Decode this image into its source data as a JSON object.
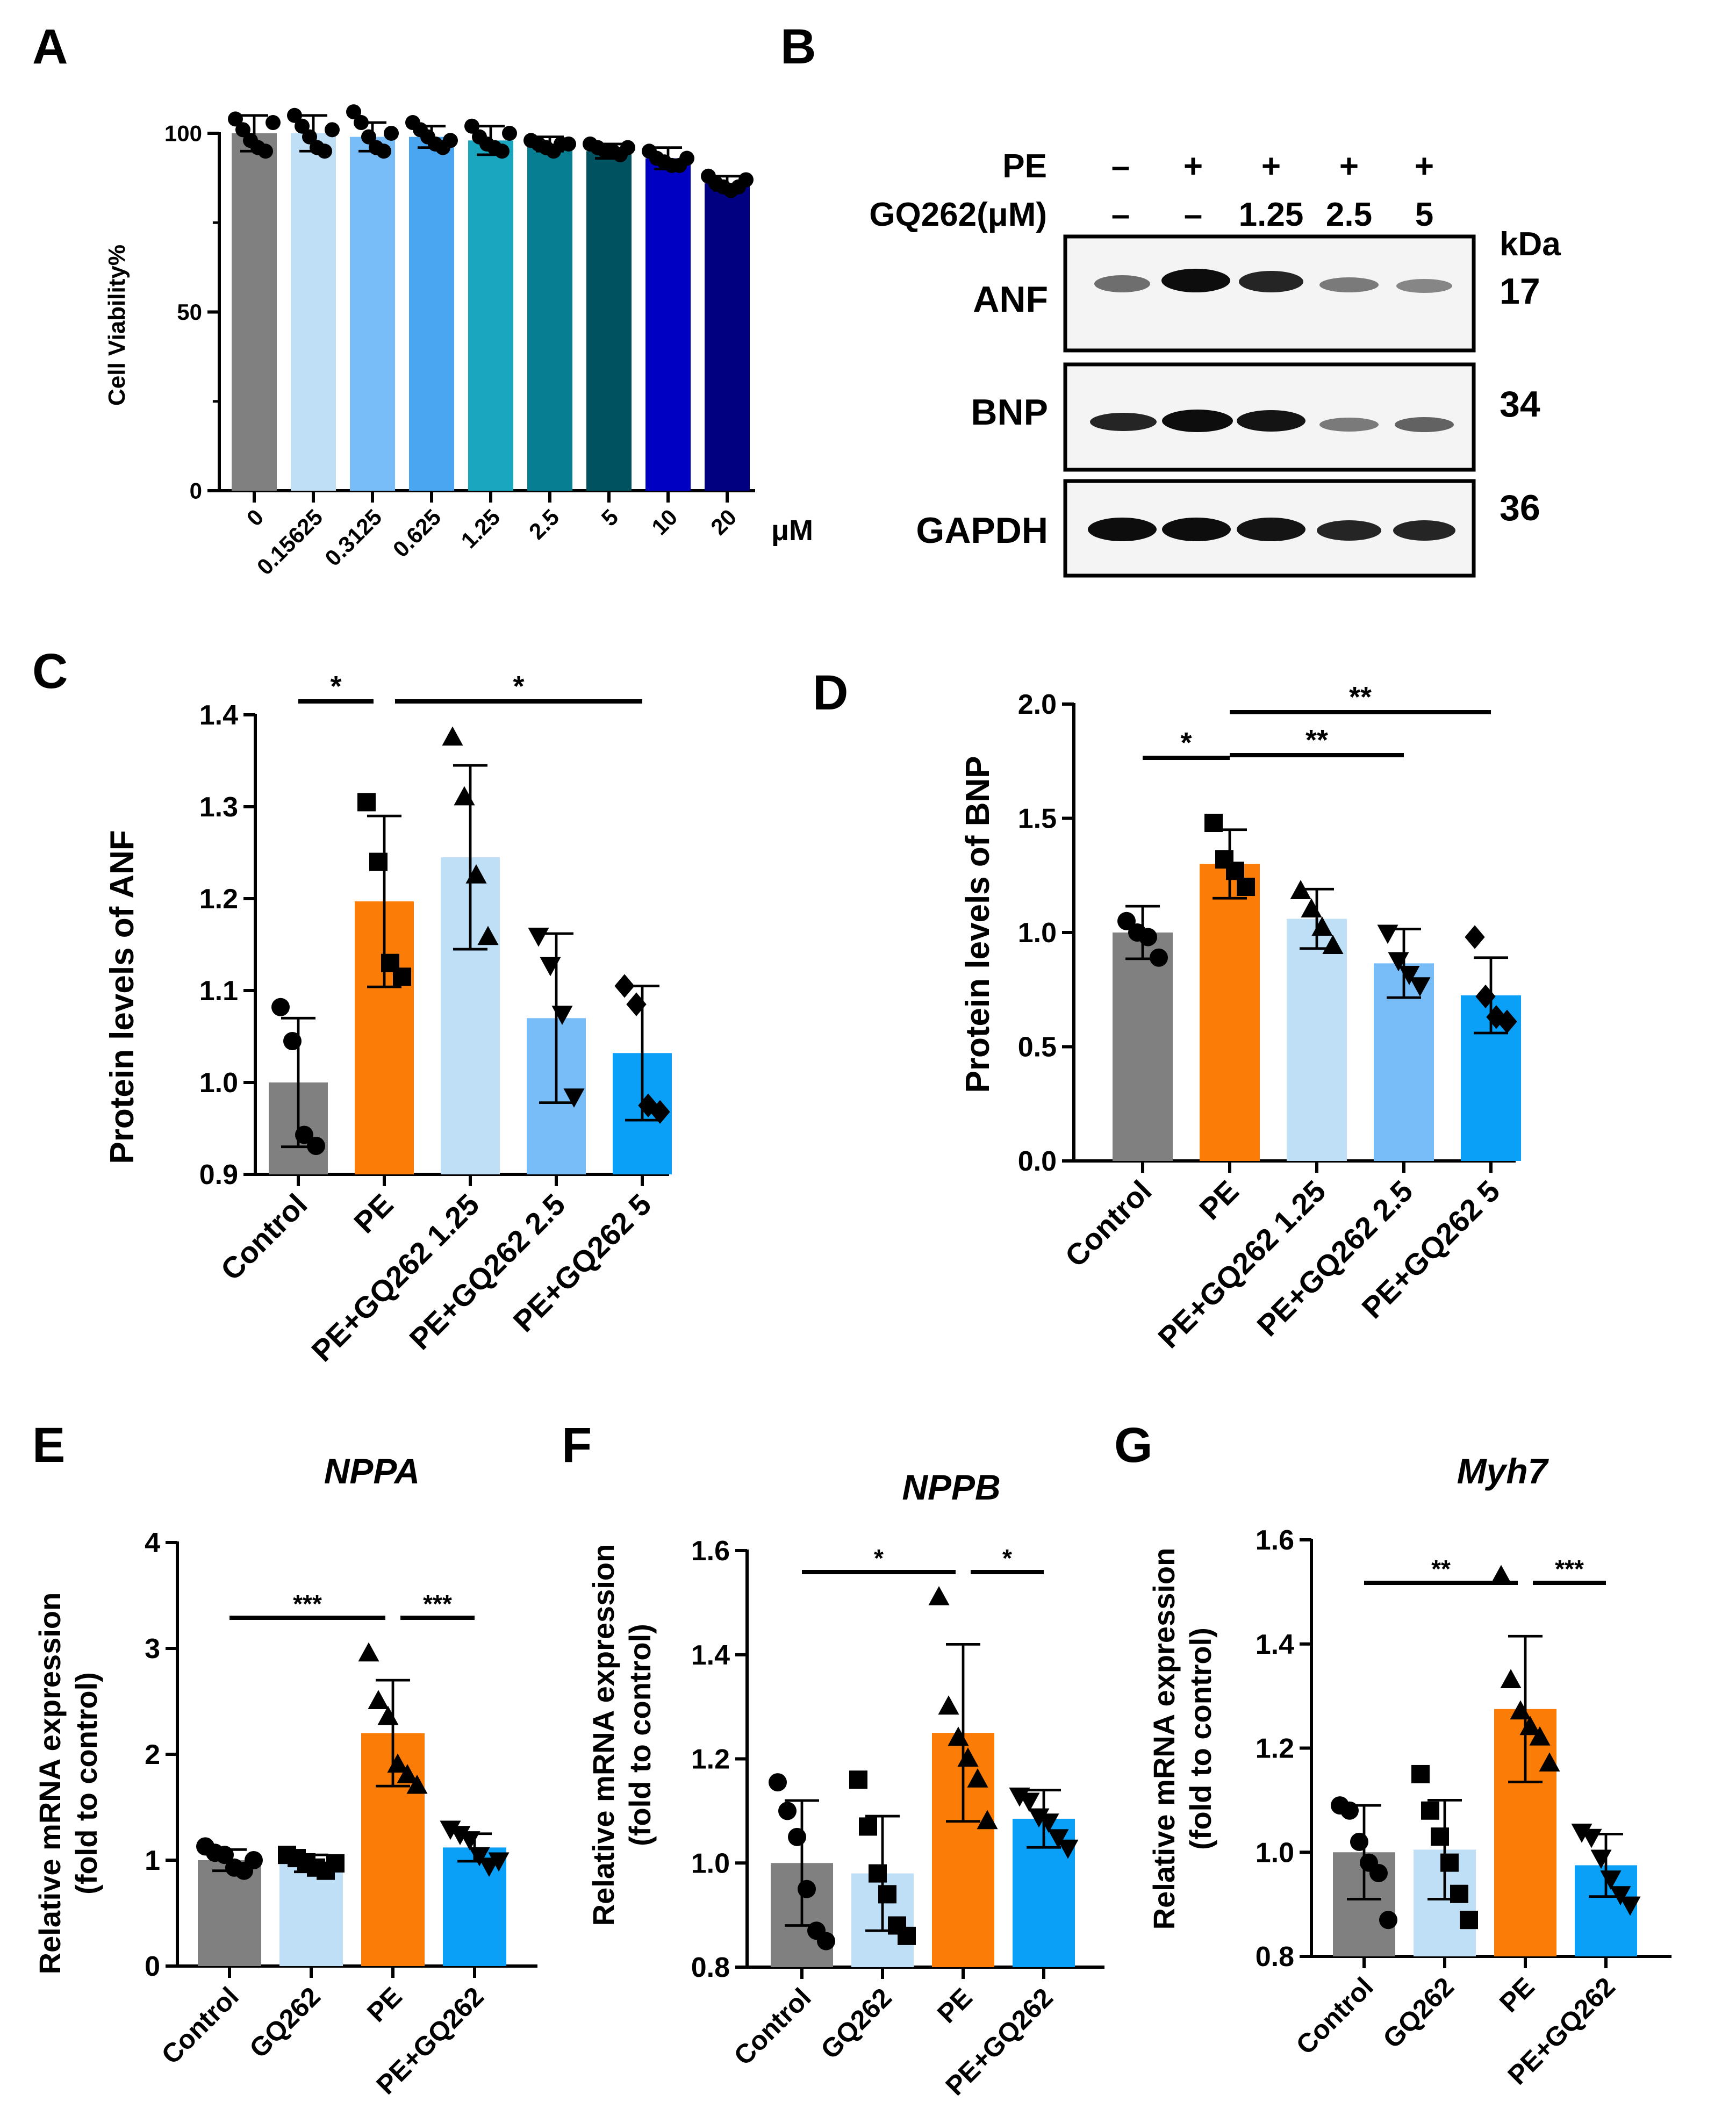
{
  "colors": {
    "gray": "#808080",
    "light_blue": "#bfdff7",
    "mid_blue": "#79bdf8",
    "blue": "#0aa0f7",
    "orange": "#fb7d07",
    "teal1": "#1aa6bf",
    "teal2": "#087e93",
    "dark_teal": "#005261",
    "royal": "#0000c3",
    "navy": "#000080",
    "sky": "#4aa6f0"
  },
  "panelA": {
    "letter": "A",
    "ylabel": "Cell Viability%",
    "unit": "μM",
    "yticks": [
      "0",
      "50",
      "100"
    ]
  },
  "panelB": {
    "letter": "B",
    "row_labels": [
      "PE",
      "GQ262(μM)"
    ],
    "pe": [
      "–",
      "+",
      "+",
      "+",
      "+"
    ],
    "gq": [
      "–",
      "–",
      "1.25",
      "2.5",
      "5"
    ],
    "kda": "kDa",
    "blots": [
      {
        "name": "ANF",
        "mw": "17"
      },
      {
        "name": "BNP",
        "mw": "34"
      },
      {
        "name": "GAPDH",
        "mw": "36"
      }
    ]
  },
  "panelC": {
    "letter": "C",
    "ylabel": "Protein levels of ANF",
    "yticks": [
      "0.9",
      "1.0",
      "1.1",
      "1.2",
      "1.3",
      "1.4"
    ],
    "sig": [
      "*",
      "*"
    ]
  },
  "panelD": {
    "letter": "D",
    "ylabel": "Protein levels of BNP",
    "yticks": [
      "0.0",
      "0.5",
      "1.0",
      "1.5",
      "2.0"
    ],
    "sig": [
      "*",
      "**",
      "**"
    ]
  },
  "panelE": {
    "letter": "E",
    "title": "NPPA",
    "ylabel1": "Relative mRNA expression",
    "ylabel2": "(fold to control)",
    "yticks": [
      "0",
      "1",
      "2",
      "3",
      "4"
    ],
    "sig": [
      "***",
      "***"
    ]
  },
  "panelF": {
    "letter": "F",
    "title": "NPPB",
    "ylabel1": "Relative mRNA expression",
    "ylabel2": "(fold to control)",
    "yticks": [
      "0.8",
      "1.0",
      "1.2",
      "1.4",
      "1.6"
    ],
    "sig": [
      "*",
      "*"
    ]
  },
  "panelG": {
    "letter": "G",
    "title": "Myh7",
    "ylabel1": "Relative mRNA expression",
    "ylabel2": "(fold to control)",
    "yticks": [
      "0.8",
      "1.0",
      "1.2",
      "1.4",
      "1.6"
    ],
    "sig": [
      "**",
      "***"
    ]
  },
  "chart_data": [
    {
      "id": "A",
      "type": "bar",
      "ylabel": "Cell Viability%",
      "xunit": "μM",
      "ylim": [
        0,
        100
      ],
      "categories": [
        "0",
        "0.15625",
        "0.3125",
        "0.625",
        "1.25",
        "2.5",
        "5",
        "10",
        "20"
      ],
      "values": [
        100,
        100,
        99,
        99,
        98,
        97,
        95,
        93,
        86
      ],
      "errors": [
        5,
        5,
        4,
        3,
        4,
        2,
        2,
        3,
        2
      ],
      "points": [
        [
          104,
          101,
          98,
          96,
          95,
          103
        ],
        [
          105,
          102,
          99,
          96,
          95,
          101
        ],
        [
          106,
          103,
          99,
          96,
          95,
          100
        ],
        [
          103,
          101,
          99,
          97,
          96,
          98
        ],
        [
          102,
          99,
          97,
          96,
          95,
          100
        ],
        [
          98,
          97,
          96,
          95,
          97,
          97
        ],
        [
          97,
          96,
          95,
          95,
          94,
          96
        ],
        [
          95,
          93,
          92,
          91,
          91,
          93
        ],
        [
          88,
          86,
          85,
          84,
          85,
          87
        ]
      ],
      "colors": [
        "gray",
        "light_blue",
        "mid_blue",
        "sky",
        "teal1",
        "teal2",
        "dark_teal",
        "royal",
        "navy"
      ]
    },
    {
      "id": "C",
      "type": "bar",
      "ylabel": "Protein levels of ANF",
      "ylim": [
        0.9,
        1.4
      ],
      "categories": [
        "Control",
        "PE",
        "PE+GQ262 1.25",
        "PE+GQ262 2.5",
        "PE+GQ262 5"
      ],
      "values": [
        1.0,
        1.197,
        1.245,
        1.07,
        1.032
      ],
      "errors": [
        0.07,
        0.093,
        0.1,
        0.092,
        0.073
      ],
      "points": [
        [
          1.082,
          1.045,
          0.943,
          0.931
        ],
        [
          1.305,
          1.24,
          1.13,
          1.115
        ],
        [
          1.375,
          1.31,
          1.225,
          1.158
        ],
        [
          1.16,
          1.128,
          1.075,
          0.985
        ],
        [
          1.105,
          1.085,
          0.975,
          0.968
        ]
      ],
      "markers": [
        "circle",
        "square",
        "triangle",
        "tri-down",
        "diamond"
      ],
      "colors": [
        "gray",
        "orange",
        "light_blue",
        "mid_blue",
        "blue"
      ],
      "significance": [
        {
          "from": 0,
          "to": 1,
          "label": "*"
        },
        {
          "from": 1,
          "to": 4,
          "label": "*"
        }
      ]
    },
    {
      "id": "D",
      "type": "bar",
      "ylabel": "Protein levels of BNP",
      "ylim": [
        0,
        2.0
      ],
      "categories": [
        "Control",
        "PE",
        "PE+GQ262 1.25",
        "PE+GQ262 2.5",
        "PE+GQ262 5"
      ],
      "values": [
        1.0,
        1.3,
        1.06,
        0.865,
        0.725
      ],
      "errors": [
        0.115,
        0.15,
        0.13,
        0.15,
        0.165
      ],
      "points": [
        [
          1.05,
          1.0,
          0.98,
          0.89
        ],
        [
          1.48,
          1.32,
          1.27,
          1.2
        ],
        [
          1.18,
          1.1,
          1.02,
          0.94
        ],
        [
          1.0,
          0.88,
          0.82,
          0.77
        ],
        [
          0.98,
          0.72,
          0.63,
          0.61
        ]
      ],
      "markers": [
        "circle",
        "square",
        "triangle",
        "tri-down",
        "diamond"
      ],
      "colors": [
        "gray",
        "orange",
        "light_blue",
        "mid_blue",
        "blue"
      ],
      "significance": [
        {
          "from": 0,
          "to": 1,
          "label": "*"
        },
        {
          "from": 1,
          "to": 3,
          "label": "**"
        },
        {
          "from": 1,
          "to": 4,
          "label": "**"
        }
      ]
    },
    {
      "id": "E",
      "type": "bar",
      "title": "NPPA",
      "ylabel": "Relative mRNA expression (fold to control)",
      "ylim": [
        0,
        4
      ],
      "categories": [
        "Control",
        "GQ262",
        "PE",
        "PE+GQ262"
      ],
      "values": [
        1.0,
        0.97,
        2.2,
        1.12
      ],
      "errors": [
        0.1,
        0.08,
        0.5,
        0.13
      ],
      "points": [
        [
          1.13,
          1.07,
          1.05,
          0.93,
          0.9,
          1.0
        ],
        [
          1.05,
          1.02,
          0.98,
          0.93,
          0.9,
          0.97
        ],
        [
          2.95,
          2.5,
          2.35,
          1.9,
          1.8,
          1.7
        ],
        [
          1.3,
          1.25,
          1.2,
          1.05,
          0.95,
          1.0
        ]
      ],
      "markers": [
        "circle",
        "square",
        "triangle",
        "tri-down"
      ],
      "colors": [
        "gray",
        "light_blue",
        "orange",
        "blue"
      ],
      "significance": [
        {
          "from": 0,
          "to": 2,
          "label": "***"
        },
        {
          "from": 2,
          "to": 3,
          "label": "***"
        }
      ]
    },
    {
      "id": "F",
      "type": "bar",
      "title": "NPPB",
      "ylabel": "Relative mRNA expression (fold to control)",
      "ylim": [
        0.8,
        1.6
      ],
      "categories": [
        "Control",
        "GQ262",
        "PE",
        "PE+GQ262"
      ],
      "values": [
        1.0,
        0.98,
        1.25,
        1.085
      ],
      "errors": [
        0.12,
        0.11,
        0.17,
        0.055
      ],
      "points": [
        [
          1.155,
          1.1,
          1.05,
          0.95,
          0.87,
          0.85
        ],
        [
          1.16,
          1.07,
          0.98,
          0.94,
          0.88,
          0.86
        ],
        [
          1.51,
          1.3,
          1.24,
          1.2,
          1.16,
          1.08
        ],
        [
          1.13,
          1.12,
          1.09,
          1.08,
          1.05,
          1.03
        ]
      ],
      "markers": [
        "circle",
        "square",
        "triangle",
        "tri-down"
      ],
      "colors": [
        "gray",
        "light_blue",
        "orange",
        "blue"
      ],
      "significance": [
        {
          "from": 0,
          "to": 2,
          "label": "*"
        },
        {
          "from": 2,
          "to": 3,
          "label": "*"
        }
      ]
    },
    {
      "id": "G",
      "type": "bar",
      "title": "Myh7",
      "ylabel": "Relative mRNA expression (fold to control)",
      "ylim": [
        0.8,
        1.6
      ],
      "categories": [
        "Control",
        "GQ262",
        "PE",
        "PE+GQ262"
      ],
      "values": [
        1.0,
        1.005,
        1.275,
        0.975
      ],
      "errors": [
        0.09,
        0.095,
        0.14,
        0.06
      ],
      "points": [
        [
          1.09,
          1.08,
          1.02,
          0.98,
          0.96,
          0.87
        ],
        [
          1.15,
          1.08,
          1.03,
          0.98,
          0.92,
          0.87
        ],
        [
          1.53,
          1.33,
          1.27,
          1.24,
          1.22,
          1.17
        ],
        [
          1.04,
          1.03,
          0.99,
          0.95,
          0.92,
          0.9
        ]
      ],
      "markers": [
        "circle",
        "square",
        "triangle",
        "tri-down"
      ],
      "colors": [
        "gray",
        "light_blue",
        "orange",
        "blue"
      ],
      "significance": [
        {
          "from": 0,
          "to": 2,
          "label": "**"
        },
        {
          "from": 2,
          "to": 3,
          "label": "***"
        }
      ]
    }
  ]
}
